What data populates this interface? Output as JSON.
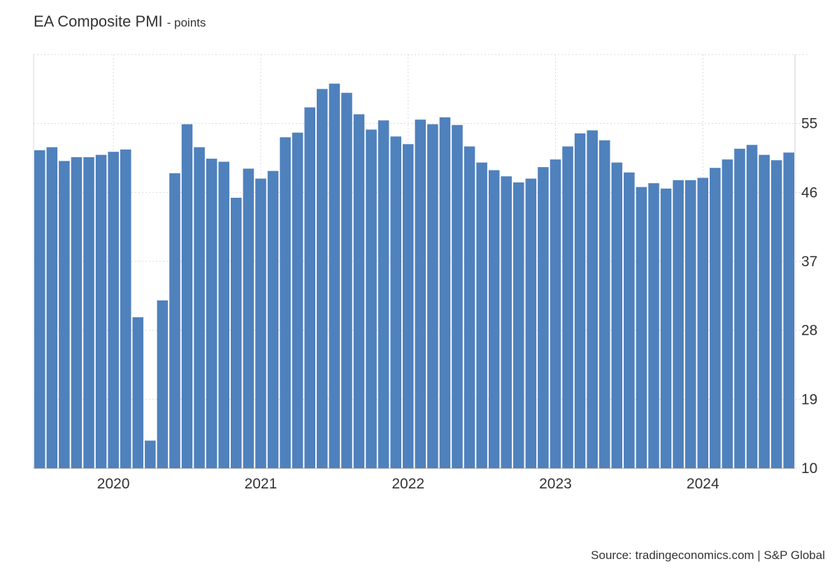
{
  "chart_data": {
    "type": "bar",
    "title": "EA Composite PMI",
    "unit": "- points",
    "source": "Source: tradingeconomics.com | S&P Global",
    "color": "#4f81bd",
    "x_tick_labels": [
      "2020",
      "2021",
      "2022",
      "2023",
      "2024"
    ],
    "y_ticks": [
      10,
      19,
      28,
      37,
      46,
      55
    ],
    "ylim": [
      10,
      64
    ],
    "grid": true,
    "y_axis_side": "right",
    "categories": [
      "2019-07",
      "2019-08",
      "2019-09",
      "2019-10",
      "2019-11",
      "2019-12",
      "2020-01",
      "2020-02",
      "2020-03",
      "2020-04",
      "2020-05",
      "2020-06",
      "2020-07",
      "2020-08",
      "2020-09",
      "2020-10",
      "2020-11",
      "2020-12",
      "2021-01",
      "2021-02",
      "2021-03",
      "2021-04",
      "2021-05",
      "2021-06",
      "2021-07",
      "2021-08",
      "2021-09",
      "2021-10",
      "2021-11",
      "2021-12",
      "2022-01",
      "2022-02",
      "2022-03",
      "2022-04",
      "2022-05",
      "2022-06",
      "2022-07",
      "2022-08",
      "2022-09",
      "2022-10",
      "2022-11",
      "2022-12",
      "2023-01",
      "2023-02",
      "2023-03",
      "2023-04",
      "2023-05",
      "2023-06",
      "2023-07",
      "2023-08",
      "2023-09",
      "2023-10",
      "2023-11",
      "2023-12",
      "2024-01",
      "2024-02",
      "2024-03",
      "2024-04",
      "2024-05",
      "2024-06",
      "2024-07",
      "2024-08"
    ],
    "values": [
      51.5,
      51.9,
      50.1,
      50.6,
      50.6,
      50.9,
      51.3,
      51.6,
      29.7,
      13.6,
      31.9,
      48.5,
      54.9,
      51.9,
      50.4,
      50.0,
      45.3,
      49.1,
      47.8,
      48.8,
      53.2,
      53.8,
      57.1,
      59.5,
      60.2,
      59.0,
      56.2,
      54.2,
      55.4,
      53.3,
      52.3,
      55.5,
      54.9,
      55.8,
      54.8,
      52.0,
      49.9,
      48.9,
      48.1,
      47.3,
      47.8,
      49.3,
      50.3,
      52.0,
      53.7,
      54.1,
      52.8,
      49.9,
      48.6,
      46.7,
      47.2,
      46.5,
      47.6,
      47.6,
      47.9,
      49.2,
      50.3,
      51.7,
      52.2,
      50.9,
      50.2,
      51.2
    ]
  }
}
